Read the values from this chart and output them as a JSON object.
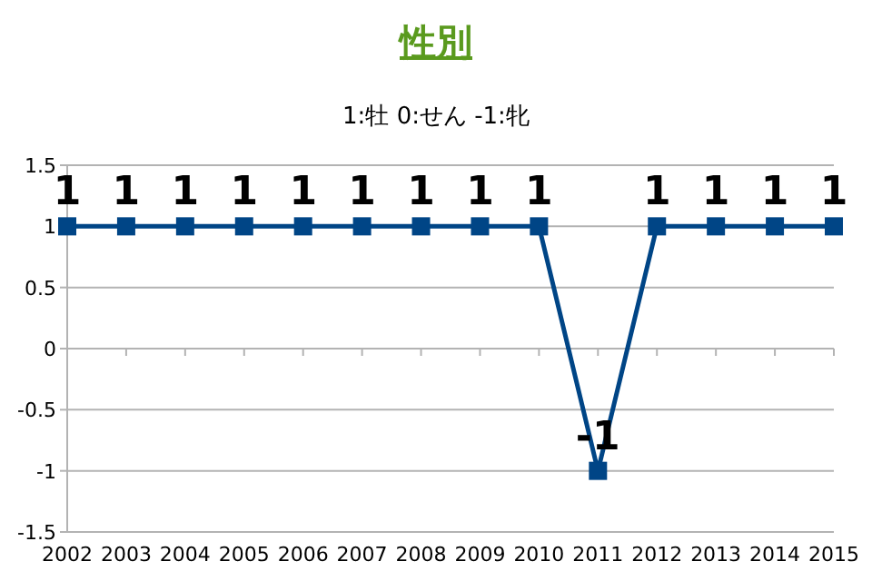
{
  "chart_data": {
    "type": "line",
    "title": "性別",
    "subtitle": "1:牡 0:せん -1:牝",
    "categories": [
      "2002",
      "2003",
      "2004",
      "2005",
      "2006",
      "2007",
      "2008",
      "2009",
      "2010",
      "2011",
      "2012",
      "2013",
      "2014",
      "2015"
    ],
    "series": [
      {
        "color": "#004586",
        "values": [
          1,
          1,
          1,
          1,
          1,
          1,
          1,
          1,
          1,
          -1,
          1,
          1,
          1,
          1
        ]
      }
    ],
    "ylim": [
      -1.5,
      1.5
    ],
    "yticks": [
      -1.5,
      -1,
      -0.5,
      0,
      0.5,
      1,
      1.5
    ],
    "grid": "y",
    "marker": "square",
    "line_style": "solid",
    "data_labels": true
  }
}
